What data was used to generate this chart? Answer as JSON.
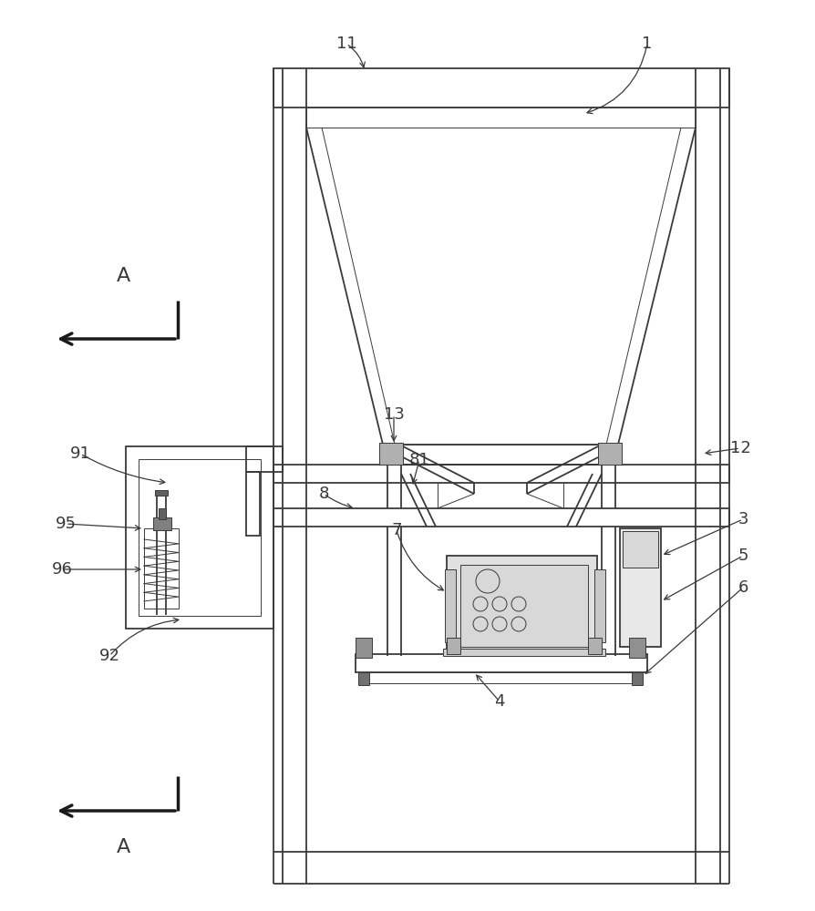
{
  "bg_color": "#ffffff",
  "lc": "#3a3a3a",
  "lw": 1.3,
  "tlw": 0.7,
  "thk": 2.5,
  "fig_w": 8.94,
  "fig_h": 10.0,
  "label_fs": 13,
  "arrow_fs": 16
}
